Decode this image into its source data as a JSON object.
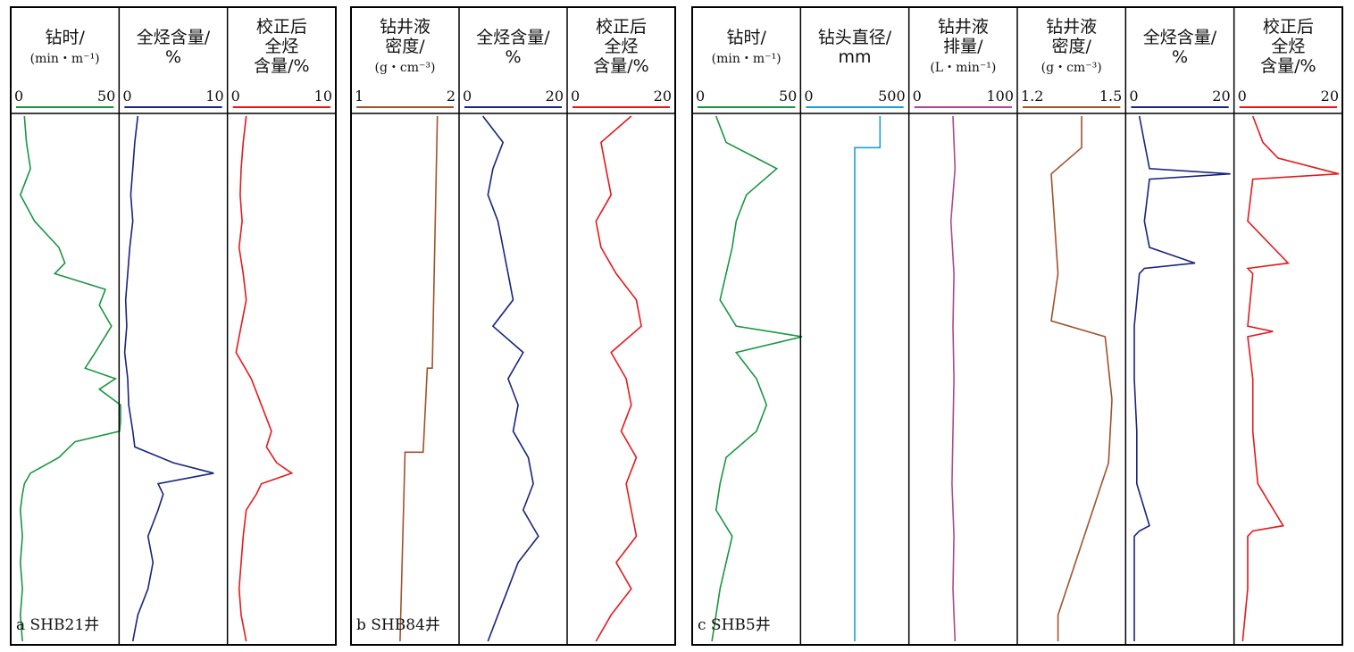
{
  "chart_data": [
    {
      "type": "line",
      "panel": "a",
      "well_label": "a  SHB21井",
      "tracks": [
        {
          "title_lines": [
            "钻时/",
            "(min・m⁻¹)"
          ],
          "scale_min": 0,
          "scale_max": 50,
          "tick_labels": [
            "0",
            "50"
          ],
          "color": "#1a9641",
          "series": {
            "depth_fraction": [
              0.0,
              0.05,
              0.1,
              0.15,
              0.2,
              0.25,
              0.28,
              0.3,
              0.33,
              0.36,
              0.4,
              0.45,
              0.48,
              0.5,
              0.52,
              0.55,
              0.58,
              0.6,
              0.62,
              0.65,
              0.68,
              0.7,
              0.72,
              0.75,
              0.8,
              0.85,
              0.9,
              0.95,
              1.0
            ],
            "values": [
              5,
              6,
              8,
              3,
              10,
              22,
              25,
              20,
              45,
              42,
              48,
              40,
              35,
              50,
              42,
              60,
              55,
              52,
              30,
              22,
              8,
              5,
              4,
              3,
              4,
              3,
              4,
              3,
              4
            ]
          }
        },
        {
          "title_lines": [
            "全烃含量/",
            "%"
          ],
          "scale_min": 0,
          "scale_max": 10,
          "tick_labels": [
            "0",
            "10"
          ],
          "color": "#1a237e",
          "series": {
            "depth_fraction": [
              0.0,
              0.05,
              0.1,
              0.15,
              0.2,
              0.25,
              0.3,
              0.35,
              0.4,
              0.45,
              0.5,
              0.55,
              0.6,
              0.63,
              0.66,
              0.68,
              0.7,
              0.72,
              0.75,
              0.8,
              0.85,
              0.9,
              0.95,
              1.0
            ],
            "values": [
              1.5,
              1.2,
              1.0,
              0.8,
              1.0,
              0.7,
              0.5,
              0.3,
              0.4,
              0.2,
              0.5,
              0.6,
              1.0,
              1.2,
              5.0,
              9.0,
              3.5,
              4.0,
              3.5,
              2.5,
              3.0,
              2.5,
              1.5,
              1.0
            ]
          }
        },
        {
          "title_lines": [
            "校正后",
            "全烃",
            "含量/%"
          ],
          "scale_min": 0,
          "scale_max": 10,
          "tick_labels": [
            "0",
            "10"
          ],
          "color": "#e31a1c",
          "series": {
            "depth_fraction": [
              0.0,
              0.05,
              0.1,
              0.15,
              0.2,
              0.25,
              0.3,
              0.35,
              0.4,
              0.45,
              0.5,
              0.55,
              0.6,
              0.63,
              0.66,
              0.68,
              0.7,
              0.72,
              0.75,
              0.8,
              0.85,
              0.9,
              0.95,
              1.0
            ],
            "values": [
              1.5,
              1.2,
              1.0,
              0.9,
              1.1,
              0.8,
              1.2,
              1.5,
              1.0,
              0.5,
              2.0,
              3.0,
              4.0,
              3.5,
              4.5,
              6.0,
              3.0,
              2.5,
              1.5,
              1.2,
              1.0,
              0.8,
              1.0,
              1.5
            ]
          }
        }
      ]
    },
    {
      "type": "line",
      "panel": "b",
      "well_label": "b  SHB84井",
      "tracks": [
        {
          "title_lines": [
            "钻井液",
            "密度/",
            "(g・cm⁻³)"
          ],
          "scale_min": 1,
          "scale_max": 2,
          "tick_labels": [
            "1",
            "2"
          ],
          "color": "#a0522d",
          "series": {
            "depth_fraction": [
              0.0,
              0.48,
              0.48,
              0.64,
              0.64,
              1.0
            ],
            "values": [
              1.82,
              1.77,
              1.72,
              1.68,
              1.5,
              1.45
            ]
          }
        },
        {
          "title_lines": [
            "全烃含量/",
            "%"
          ],
          "scale_min": 0,
          "scale_max": 20,
          "tick_labels": [
            "0",
            "20"
          ],
          "color": "#1a237e",
          "series": {
            "depth_fraction": [
              0.0,
              0.05,
              0.1,
              0.15,
              0.2,
              0.25,
              0.3,
              0.35,
              0.4,
              0.45,
              0.5,
              0.55,
              0.6,
              0.65,
              0.7,
              0.75,
              0.8,
              0.85,
              0.9,
              0.95,
              1.0
            ],
            "values": [
              4,
              8,
              6,
              5,
              7,
              8,
              9,
              10,
              6,
              12,
              9,
              11,
              10,
              13,
              14,
              12,
              15,
              11,
              9,
              7,
              5
            ]
          }
        },
        {
          "title_lines": [
            "校正后",
            "全烃",
            "含量/%"
          ],
          "scale_min": 0,
          "scale_max": 20,
          "tick_labels": [
            "0",
            "20"
          ],
          "color": "#e31a1c",
          "series": {
            "depth_fraction": [
              0.0,
              0.05,
              0.1,
              0.15,
              0.2,
              0.25,
              0.3,
              0.35,
              0.4,
              0.45,
              0.5,
              0.55,
              0.6,
              0.65,
              0.7,
              0.75,
              0.8,
              0.85,
              0.9,
              0.95,
              1.0
            ],
            "values": [
              12,
              6,
              7,
              8,
              5,
              6,
              9,
              13,
              14,
              8,
              11,
              12,
              10,
              13,
              11,
              12,
              13,
              9,
              12,
              8,
              5
            ]
          }
        }
      ]
    },
    {
      "type": "line",
      "panel": "c",
      "well_label": "c  SHB5井",
      "tracks": [
        {
          "title_lines": [
            "钻时/",
            "(min・m⁻¹)"
          ],
          "scale_min": 0,
          "scale_max": 50,
          "tick_labels": [
            "0",
            "50"
          ],
          "color": "#1a9641",
          "series": {
            "depth_fraction": [
              0.0,
              0.05,
              0.08,
              0.1,
              0.15,
              0.2,
              0.25,
              0.3,
              0.35,
              0.4,
              0.42,
              0.45,
              0.5,
              0.55,
              0.6,
              0.65,
              0.7,
              0.75,
              0.8,
              0.85,
              0.9,
              0.95,
              1.0
            ],
            "values": [
              10,
              15,
              30,
              40,
              25,
              20,
              18,
              15,
              12,
              20,
              60,
              20,
              30,
              35,
              30,
              15,
              12,
              10,
              18,
              15,
              12,
              10,
              8
            ]
          }
        },
        {
          "title_lines": [
            "钻头直径/",
            "mm"
          ],
          "scale_min": 0,
          "scale_max": 500,
          "tick_labels": [
            "0",
            "500"
          ],
          "color": "#1e9fd8",
          "series": {
            "depth_fraction": [
              0.0,
              0.06,
              0.06,
              1.0
            ],
            "values": [
              375,
              375,
              250,
              250
            ]
          }
        },
        {
          "title_lines": [
            "钻井液",
            "排量/",
            "(L・min⁻¹)"
          ],
          "scale_min": 0,
          "scale_max": 100,
          "tick_labels": [
            "0",
            "100"
          ],
          "color": "#b0478f",
          "series": {
            "depth_fraction": [
              0.0,
              0.1,
              0.2,
              0.3,
              0.4,
              0.5,
              0.6,
              0.7,
              0.8,
              0.9,
              1.0
            ],
            "values": [
              40,
              42,
              38,
              41,
              40,
              41,
              40,
              39,
              41,
              40,
              42
            ]
          }
        },
        {
          "title_lines": [
            "钻井液",
            "密度/",
            "(g・cm⁻³)"
          ],
          "scale_min": 1.2,
          "scale_max": 1.5,
          "tick_labels": [
            "1.2",
            "1.5"
          ],
          "color": "#a0522d",
          "series": {
            "depth_fraction": [
              0.0,
              0.06,
              0.11,
              0.3,
              0.39,
              0.42,
              0.54,
              0.66,
              0.95,
              1.0
            ],
            "values": [
              1.38,
              1.38,
              1.29,
              1.31,
              1.29,
              1.45,
              1.47,
              1.46,
              1.31,
              1.31
            ]
          }
        },
        {
          "title_lines": [
            "全烃含量/",
            "%"
          ],
          "scale_min": 0,
          "scale_max": 20,
          "tick_labels": [
            "0",
            "20"
          ],
          "color": "#1a237e",
          "series": {
            "depth_fraction": [
              0.0,
              0.05,
              0.1,
              0.11,
              0.12,
              0.2,
              0.25,
              0.28,
              0.29,
              0.3,
              0.4,
              0.5,
              0.6,
              0.7,
              0.78,
              0.79,
              0.8,
              0.9,
              1.0
            ],
            "values": [
              2,
              3,
              4,
              20,
              4,
              3,
              4,
              13,
              3,
              2,
              1,
              1,
              1.5,
              1.5,
              4,
              2,
              1,
              1,
              1
            ]
          }
        },
        {
          "title_lines": [
            "校正后",
            "全烃",
            "含量/%"
          ],
          "scale_min": 0,
          "scale_max": 20,
          "tick_labels": [
            "0",
            "20"
          ],
          "color": "#e31a1c",
          "series": {
            "depth_fraction": [
              0.0,
              0.05,
              0.08,
              0.11,
              0.12,
              0.2,
              0.28,
              0.29,
              0.3,
              0.4,
              0.41,
              0.42,
              0.5,
              0.6,
              0.7,
              0.78,
              0.79,
              0.8,
              0.9,
              1.0
            ],
            "values": [
              3,
              5,
              8,
              20,
              3,
              2,
              10,
              2,
              3,
              2,
              7,
              2,
              3,
              3,
              4,
              9,
              3,
              2,
              2,
              1
            ]
          }
        }
      ]
    }
  ]
}
